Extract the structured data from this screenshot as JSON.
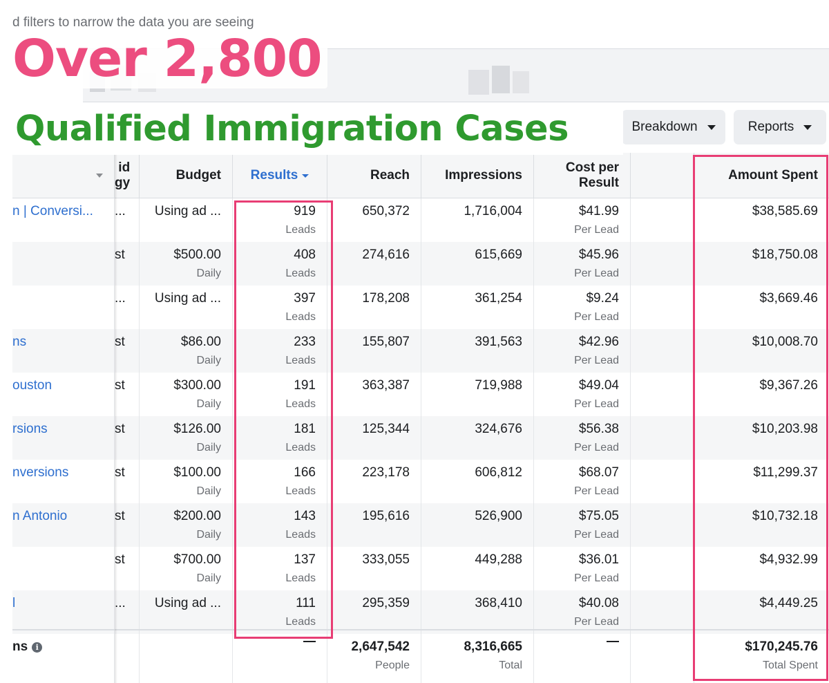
{
  "hint_text": "d filters to narrow the data you are seeing",
  "overlay": {
    "title": "Over 2,800",
    "subtitle": "Qualified Immigration Cases"
  },
  "toolbar": {
    "breakdown_label": "Breakdown",
    "reports_label": "Reports"
  },
  "columns": {
    "bid_strategy": "id\ngy",
    "budget": "Budget",
    "results": "Results",
    "reach": "Reach",
    "impressions": "Impressions",
    "cost_per_result": "Cost per\nResult",
    "amount_spent": "Amount Spent"
  },
  "rows": [
    {
      "name": "n | Conversi...",
      "bid": "...",
      "budget": "Using ad ...",
      "budget_sub": "",
      "results": "919",
      "results_sub": "Leads",
      "reach": "650,372",
      "impressions": "1,716,004",
      "cpr": "$41.99",
      "cpr_sub": "Per Lead",
      "amount": "$38,585.69"
    },
    {
      "name": "",
      "bid": "st",
      "budget": "$500.00",
      "budget_sub": "Daily",
      "results": "408",
      "results_sub": "Leads",
      "reach": "274,616",
      "impressions": "615,669",
      "cpr": "$45.96",
      "cpr_sub": "Per Lead",
      "amount": "$18,750.08"
    },
    {
      "name": "",
      "bid": "...",
      "budget": "Using ad ...",
      "budget_sub": "",
      "results": "397",
      "results_sub": "Leads",
      "reach": "178,208",
      "impressions": "361,254",
      "cpr": "$9.24",
      "cpr_sub": "Per Lead",
      "amount": "$3,669.46"
    },
    {
      "name": "ns",
      "bid": "st",
      "budget": "$86.00",
      "budget_sub": "Daily",
      "results": "233",
      "results_sub": "Leads",
      "reach": "155,807",
      "impressions": "391,563",
      "cpr": "$42.96",
      "cpr_sub": "Per Lead",
      "amount": "$10,008.70"
    },
    {
      "name": "ouston",
      "bid": "st",
      "budget": "$300.00",
      "budget_sub": "Daily",
      "results": "191",
      "results_sub": "Leads",
      "reach": "363,387",
      "impressions": "719,988",
      "cpr": "$49.04",
      "cpr_sub": "Per Lead",
      "amount": "$9,367.26"
    },
    {
      "name": "rsions",
      "bid": "st",
      "budget": "$126.00",
      "budget_sub": "Daily",
      "results": "181",
      "results_sub": "Leads",
      "reach": "125,344",
      "impressions": "324,676",
      "cpr": "$56.38",
      "cpr_sub": "Per Lead",
      "amount": "$10,203.98"
    },
    {
      "name": "nversions",
      "bid": "st",
      "budget": "$100.00",
      "budget_sub": "Daily",
      "results": "166",
      "results_sub": "Leads",
      "reach": "223,178",
      "impressions": "606,812",
      "cpr": "$68.07",
      "cpr_sub": "Per Lead",
      "amount": "$11,299.37"
    },
    {
      "name": "n Antonio",
      "bid": "st",
      "budget": "$200.00",
      "budget_sub": "Daily",
      "results": "143",
      "results_sub": "Leads",
      "reach": "195,616",
      "impressions": "526,900",
      "cpr": "$75.05",
      "cpr_sub": "Per Lead",
      "amount": "$10,732.18"
    },
    {
      "name": "",
      "bid": "st",
      "budget": "$700.00",
      "budget_sub": "Daily",
      "results": "137",
      "results_sub": "Leads",
      "reach": "333,055",
      "impressions": "449,288",
      "cpr": "$36.01",
      "cpr_sub": "Per Lead",
      "amount": "$4,932.99"
    },
    {
      "name": "l",
      "bid": "...",
      "budget": "Using ad ...",
      "budget_sub": "",
      "results": "111",
      "results_sub": "Leads",
      "reach": "295,359",
      "impressions": "368,410",
      "cpr": "$40.08",
      "cpr_sub": "Per Lead",
      "amount": "$4,449.25"
    }
  ],
  "totals": {
    "label": "ns",
    "results": "—",
    "reach": "2,647,542",
    "reach_sub": "People",
    "impressions": "8,316,665",
    "impressions_sub": "Total",
    "cpr": "—",
    "amount": "$170,245.76",
    "amount_sub": "Total Spent"
  },
  "colors": {
    "link_blue": "#2e6fcf",
    "highlight_pink": "#e83d74",
    "title_pink": "#ec4d7f",
    "subtitle_green": "#2f9a2f"
  }
}
